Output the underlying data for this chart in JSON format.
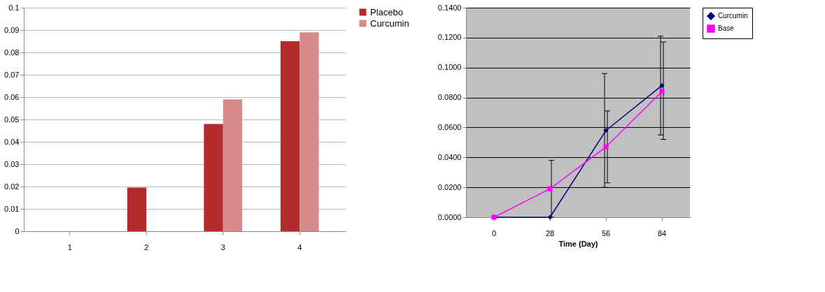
{
  "chart_data": [
    {
      "type": "bar",
      "categories": [
        "1",
        "2",
        "3",
        "4"
      ],
      "series": [
        {
          "name": "Placebo",
          "color": "#b52a2a",
          "values": [
            0,
            0.0195,
            0.048,
            0.085
          ]
        },
        {
          "name": "Curcumin",
          "color": "#d88a8a",
          "values": [
            0,
            0,
            0.059,
            0.089
          ]
        }
      ],
      "ylim": [
        0,
        0.1
      ],
      "yticks": [
        {
          "value": 0,
          "label": "0"
        },
        0.01,
        0.02,
        0.03,
        0.04,
        0.05,
        0.06,
        0.07,
        0.08,
        0.09,
        0.1
      ],
      "grid": "y",
      "legend": "right"
    },
    {
      "type": "line",
      "categories": [
        "0",
        "28",
        "56",
        "84"
      ],
      "xlabel": "Time (Day)",
      "series": [
        {
          "name": "Curcumin",
          "color": "#000080",
          "marker": "diamond",
          "values": [
            0,
            0,
            0.058,
            0.088
          ],
          "errors": [
            null,
            null,
            [
              0.02,
              0.096
            ],
            [
              0.055,
              0.121
            ]
          ]
        },
        {
          "name": "Base",
          "color": "#ff00ff",
          "marker": "square",
          "values": [
            0,
            0.019,
            0.047,
            0.084
          ],
          "errors": [
            null,
            [
              0,
              0.038
            ],
            [
              0.023,
              0.071
            ],
            [
              0.052,
              0.117
            ]
          ]
        }
      ],
      "ylim": [
        0,
        0.14
      ],
      "yticks": [
        {
          "value": 0,
          "label": "0.0000"
        },
        {
          "value": 0.02,
          "label": "0.0200"
        },
        {
          "value": 0.04,
          "label": "0.0400"
        },
        {
          "value": 0.06,
          "label": "0.0600"
        },
        {
          "value": 0.08,
          "label": "0.0800"
        },
        {
          "value": 0.1,
          "label": "0.1000"
        },
        {
          "value": 0.12,
          "label": "0.1200"
        },
        {
          "value": 0.14,
          "label": "0.1400"
        }
      ],
      "grid": "y",
      "legend": "right"
    }
  ]
}
